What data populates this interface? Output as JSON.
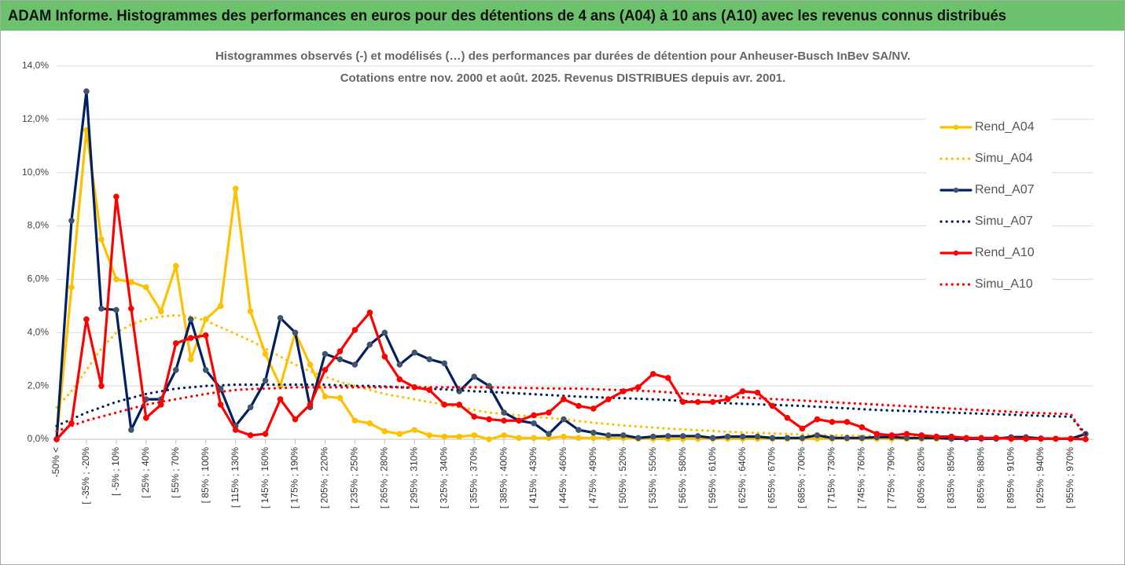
{
  "chart_data": {
    "type": "line",
    "title": "ADAM Informe. Histogrammes des performances en euros pour des détentions de 4 ans (A04) à 10 ans (A10) avec les revenus connus distribués",
    "subtitle": [
      "Histogrammes observés (-) et modélisés (…) des performances par durées de détention pour Anheuser-Busch InBev SA/NV.",
      "Cotations entre nov. 2000 et août. 2025. Revenus DISTRIBUES depuis avr. 2001."
    ],
    "categories": [
      "-50% <",
      null,
      "[ -35% ; -20%",
      null,
      "[ -5% ; 10%",
      null,
      "[ 25% ; 40%",
      null,
      "[ 55% ; 70%",
      null,
      "[ 85% ; 100%",
      null,
      "[ 115% ; 130%",
      null,
      "[ 145% ; 160%",
      null,
      "[ 175% ; 190%",
      null,
      "[ 205% ; 220%",
      null,
      "[ 235% ; 250%",
      null,
      "[ 265% ; 280%",
      null,
      "[ 295% ; 310%",
      null,
      "[ 325% ; 340%",
      null,
      "[ 355% ; 370%",
      null,
      "[ 385% ; 400%",
      null,
      "[ 415% ; 430%",
      null,
      "[ 445% ; 460%",
      null,
      "[ 475% ; 490%",
      null,
      "[ 505% ; 520%",
      null,
      "[ 535% ; 550%",
      null,
      "[ 565% ; 580%",
      null,
      "[ 595% ; 610%",
      null,
      "[ 625% ; 640%",
      null,
      "[ 655% ; 670%",
      null,
      "[ 685% ; 700%",
      null,
      "[ 715% ; 730%",
      null,
      "[ 745% ; 760%",
      null,
      "[ 775% ; 790%",
      null,
      "[ 805% ; 820%",
      null,
      "[ 835% ; 850%",
      null,
      "[ 865% ; 880%",
      null,
      "[ 895% ; 910%",
      null,
      "[ 925% ; 940%",
      null,
      "[ 955% ; 970%",
      null
    ],
    "ylim": [
      0,
      14
    ],
    "yticks": [
      {
        "value": 0,
        "label": "0,0%"
      },
      {
        "value": 2,
        "label": "2,0%"
      },
      {
        "value": 4,
        "label": "4,0%"
      },
      {
        "value": 6,
        "label": "6,0%"
      },
      {
        "value": 8,
        "label": "8,0%"
      },
      {
        "value": 10,
        "label": "10,0%"
      },
      {
        "value": 12,
        "label": "12,0%"
      },
      {
        "value": 14,
        "label": "14,0%"
      }
    ],
    "grid": true,
    "legend": "right",
    "series": [
      {
        "name": "Rend_A04",
        "color": "#ffc000",
        "style": "solid",
        "values": [
          0,
          5.7,
          11.6,
          7.5,
          6.0,
          5.9,
          5.7,
          4.8,
          6.5,
          3.0,
          4.5,
          5.0,
          9.4,
          4.8,
          3.2,
          2.0,
          4.0,
          2.8,
          1.6,
          1.55,
          0.7,
          0.6,
          0.3,
          0.2,
          0.35,
          0.15,
          0.1,
          0.1,
          0.15,
          0.0,
          0.15,
          0.05,
          0.05,
          0.05,
          0.1,
          0.05,
          0.05,
          0.05,
          0.05,
          0.02,
          0.02,
          0.02,
          0.02,
          0.02,
          0.02,
          0.02,
          0.02,
          0.02,
          0.02,
          0.02,
          0.02,
          0.02,
          0.02,
          0.02,
          0.02,
          0.02,
          0.02,
          0.02,
          0.02,
          0.02,
          0.02,
          0.02,
          0.02,
          0.02,
          0.02,
          0.02,
          0.02,
          0.02,
          0.02,
          0.0
        ]
      },
      {
        "name": "Simu_A04",
        "color": "#ffc000",
        "style": "dotted",
        "values": [
          1.2,
          1.8,
          2.6,
          3.4,
          4.0,
          4.3,
          4.5,
          4.6,
          4.65,
          4.6,
          4.45,
          4.2,
          3.95,
          3.7,
          3.4,
          3.1,
          2.8,
          2.55,
          2.35,
          2.15,
          2.0,
          1.85,
          1.7,
          1.6,
          1.5,
          1.4,
          1.3,
          1.2,
          1.1,
          1.0,
          0.95,
          0.9,
          0.85,
          0.8,
          0.75,
          0.68,
          0.62,
          0.57,
          0.52,
          0.48,
          0.44,
          0.4,
          0.37,
          0.34,
          0.31,
          0.28,
          0.26,
          0.24,
          0.22,
          0.2,
          0.18,
          0.16,
          0.15,
          0.14,
          0.13,
          0.12,
          0.11,
          0.1,
          0.09,
          0.08,
          0.07,
          0.07,
          0.06,
          0.06,
          0.05,
          0.05,
          0.05,
          0.04,
          0.04,
          0.02
        ]
      },
      {
        "name": "Rend_A07",
        "color": "#002060",
        "style": "solid",
        "values": [
          0,
          8.2,
          13.05,
          4.9,
          4.85,
          0.35,
          1.5,
          1.5,
          2.6,
          4.5,
          2.6,
          1.9,
          0.5,
          1.2,
          2.2,
          4.55,
          4.0,
          1.2,
          3.2,
          3.0,
          2.8,
          3.55,
          4.0,
          2.8,
          3.25,
          3.0,
          2.85,
          1.8,
          2.35,
          2.0,
          1.0,
          0.7,
          0.6,
          0.2,
          0.75,
          0.35,
          0.25,
          0.15,
          0.15,
          0.05,
          0.1,
          0.12,
          0.12,
          0.12,
          0.05,
          0.1,
          0.1,
          0.1,
          0.05,
          0.05,
          0.05,
          0.15,
          0.05,
          0.05,
          0.05,
          0.08,
          0.08,
          0.05,
          0.05,
          0.05,
          0.02,
          0.02,
          0.02,
          0.02,
          0.08,
          0.08,
          0.03,
          0.02,
          0.02,
          0.2
        ]
      },
      {
        "name": "Simu_A07",
        "color": "#002060",
        "style": "dotted",
        "values": [
          0.5,
          0.75,
          1.0,
          1.2,
          1.4,
          1.55,
          1.7,
          1.8,
          1.9,
          1.95,
          2.0,
          2.02,
          2.05,
          2.05,
          2.05,
          2.05,
          2.05,
          2.05,
          2.05,
          2.02,
          2.0,
          2.0,
          1.98,
          1.95,
          1.92,
          1.9,
          1.87,
          1.84,
          1.8,
          1.78,
          1.75,
          1.72,
          1.69,
          1.66,
          1.63,
          1.6,
          1.58,
          1.56,
          1.54,
          1.52,
          1.5,
          1.47,
          1.44,
          1.41,
          1.38,
          1.35,
          1.33,
          1.31,
          1.29,
          1.27,
          1.25,
          1.22,
          1.19,
          1.16,
          1.13,
          1.1,
          1.08,
          1.06,
          1.04,
          1.02,
          1.0,
          0.98,
          0.96,
          0.94,
          0.92,
          0.9,
          0.88,
          0.86,
          0.85,
          0.2
        ]
      },
      {
        "name": "Rend_A10",
        "color": "#ff0000",
        "style": "solid",
        "values": [
          0,
          0.6,
          4.5,
          2.0,
          9.1,
          4.9,
          0.8,
          1.3,
          3.6,
          3.8,
          3.9,
          1.3,
          0.35,
          0.15,
          0.2,
          1.5,
          0.75,
          1.3,
          2.6,
          3.3,
          4.1,
          4.75,
          3.1,
          2.25,
          1.95,
          1.85,
          1.3,
          1.3,
          0.85,
          0.75,
          0.7,
          0.7,
          0.9,
          1.0,
          1.5,
          1.25,
          1.15,
          1.5,
          1.8,
          1.95,
          2.45,
          2.3,
          1.4,
          1.4,
          1.4,
          1.5,
          1.8,
          1.75,
          1.25,
          0.8,
          0.4,
          0.75,
          0.65,
          0.65,
          0.45,
          0.2,
          0.15,
          0.2,
          0.15,
          0.1,
          0.1,
          0.05,
          0.05,
          0.05,
          0.02,
          0.02,
          0.02,
          0.02,
          0.02,
          0.0
        ]
      },
      {
        "name": "Simu_A10",
        "color": "#ff0000",
        "style": "dotted",
        "values": [
          0.3,
          0.5,
          0.7,
          0.85,
          1.0,
          1.15,
          1.3,
          1.4,
          1.5,
          1.6,
          1.7,
          1.78,
          1.85,
          1.88,
          1.9,
          1.92,
          1.95,
          1.95,
          1.95,
          1.95,
          1.95,
          1.95,
          1.95,
          1.95,
          1.95,
          1.95,
          1.95,
          1.95,
          1.95,
          1.95,
          1.94,
          1.93,
          1.92,
          1.91,
          1.9,
          1.9,
          1.88,
          1.86,
          1.84,
          1.82,
          1.8,
          1.76,
          1.72,
          1.68,
          1.64,
          1.6,
          1.57,
          1.54,
          1.51,
          1.48,
          1.45,
          1.42,
          1.39,
          1.36,
          1.33,
          1.3,
          1.27,
          1.24,
          1.21,
          1.18,
          1.15,
          1.12,
          1.09,
          1.06,
          1.03,
          1.0,
          0.98,
          0.96,
          0.95,
          0.1
        ]
      }
    ]
  }
}
